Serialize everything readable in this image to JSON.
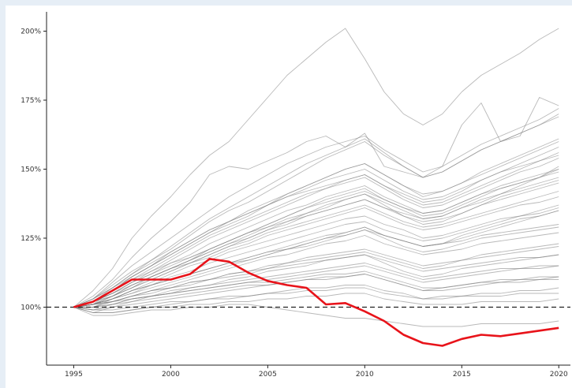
{
  "chart_data": {
    "type": "line",
    "title": "",
    "xlabel": "",
    "ylabel": "",
    "x_ticks": [
      "1995",
      "2000",
      "2005",
      "2010",
      "2015",
      "2020"
    ],
    "y_ticks": [
      "100%",
      "125%",
      "150%",
      "175%",
      "200%"
    ],
    "xlim": [
      1993.6,
      2020.6
    ],
    "ylim": [
      79,
      207
    ],
    "grid": false,
    "legend": "none",
    "baseline": {
      "y": 100,
      "style": "dashed",
      "color": "#222222"
    },
    "background_color": "#808080",
    "highlight_color": "#e8131a",
    "x": [
      1995,
      1996,
      1997,
      1998,
      1999,
      2000,
      2001,
      2002,
      2003,
      2004,
      2005,
      2006,
      2007,
      2008,
      2009,
      2010,
      2011,
      2012,
      2013,
      2014,
      2015,
      2016,
      2017,
      2018,
      2019,
      2020
    ],
    "highlight_series": {
      "values": [
        100,
        102,
        106,
        110,
        110,
        110,
        112,
        117.5,
        116.5,
        112.5,
        109.5,
        108,
        107,
        101,
        101.5,
        98.5,
        95,
        90,
        87,
        86,
        88.5,
        90,
        89.5,
        90.5,
        91.5,
        92.5
      ]
    },
    "background_series": [
      {
        "values": [
          100,
          106,
          114,
          125,
          133,
          140,
          148,
          155,
          160,
          168,
          176,
          184,
          190,
          196,
          201,
          190,
          178,
          170,
          166,
          170,
          178,
          184,
          188,
          192,
          197,
          201
        ]
      },
      {
        "values": [
          100,
          104,
          110,
          118,
          125,
          131,
          138,
          148,
          151,
          150,
          153,
          156,
          160,
          162,
          158,
          163,
          151,
          149,
          147,
          151,
          166,
          174,
          160,
          162,
          176,
          173
        ]
      },
      {
        "values": [
          100,
          101,
          106,
          110,
          113,
          116,
          118,
          121,
          124,
          127,
          129,
          131,
          133,
          135,
          137,
          139,
          136,
          134,
          132,
          133,
          136,
          139,
          141,
          144,
          147,
          151
        ]
      },
      {
        "values": [
          100,
          101,
          103,
          106,
          108,
          110,
          112,
          114,
          116,
          117,
          119,
          121,
          122,
          124,
          126,
          128,
          126,
          124,
          122,
          123,
          126,
          128,
          130,
          132,
          133,
          135
        ]
      },
      {
        "values": [
          100,
          102,
          105,
          109,
          112,
          115,
          118,
          121,
          124,
          127,
          130,
          133,
          136,
          138,
          140,
          142,
          139,
          136,
          134,
          135,
          138,
          141,
          143,
          145,
          147,
          149
        ]
      },
      {
        "values": [
          100,
          103,
          107,
          112,
          116,
          120,
          124,
          128,
          131,
          134,
          137,
          140,
          142,
          144,
          146,
          148,
          144,
          141,
          138,
          139,
          142,
          146,
          149,
          152,
          155,
          158
        ]
      },
      {
        "values": [
          100,
          100,
          102,
          104,
          106,
          107,
          109,
          110,
          112,
          113,
          114,
          116,
          117,
          118,
          119,
          120,
          118,
          116,
          114,
          115,
          117,
          119,
          120,
          121,
          122,
          123
        ]
      },
      {
        "values": [
          100,
          99,
          101,
          103,
          104,
          105,
          106,
          107,
          108,
          109,
          110,
          111,
          112,
          113,
          114,
          115,
          113,
          111,
          109,
          110,
          111,
          112,
          113,
          114,
          114,
          115
        ]
      },
      {
        "values": [
          100,
          102,
          106,
          111,
          115,
          119,
          123,
          127,
          130,
          133,
          137,
          141,
          144,
          147,
          150,
          152,
          148,
          144,
          141,
          142,
          145,
          148,
          151,
          154,
          157,
          160
        ]
      },
      {
        "values": [
          100,
          101,
          104,
          108,
          111,
          114,
          116,
          119,
          122,
          125,
          128,
          131,
          134,
          136,
          139,
          141,
          137,
          133,
          130,
          131,
          134,
          137,
          140,
          142,
          144,
          146
        ]
      },
      {
        "values": [
          100,
          103,
          108,
          113,
          117,
          121,
          126,
          131,
          135,
          138,
          142,
          146,
          150,
          154,
          157,
          160,
          155,
          151,
          147,
          149,
          153,
          157,
          160,
          163,
          166,
          170
        ]
      },
      {
        "values": [
          100,
          100,
          103,
          106,
          108,
          110,
          112,
          114,
          116,
          118,
          120,
          121,
          123,
          125,
          126,
          128,
          125,
          122,
          120,
          121,
          123,
          125,
          126,
          127,
          128,
          129
        ]
      },
      {
        "values": [
          100,
          101,
          103,
          105,
          107,
          109,
          111,
          113,
          115,
          117,
          119,
          121,
          123,
          125,
          127,
          129,
          126,
          124,
          122,
          123,
          125,
          127,
          129,
          131,
          133,
          135
        ]
      },
      {
        "values": [
          100,
          98,
          100,
          102,
          104,
          105,
          107,
          108,
          110,
          111,
          113,
          114,
          115,
          117,
          118,
          119,
          116,
          113,
          111,
          112,
          114,
          115,
          116,
          117,
          118,
          119
        ]
      },
      {
        "values": [
          100,
          102,
          105,
          109,
          113,
          117,
          121,
          125,
          128,
          131,
          134,
          137,
          140,
          143,
          145,
          147,
          143,
          139,
          136,
          137,
          140,
          143,
          146,
          149,
          151,
          154
        ]
      },
      {
        "values": [
          100,
          101,
          104,
          107,
          110,
          113,
          116,
          119,
          122,
          124,
          127,
          129,
          131,
          133,
          135,
          137,
          134,
          131,
          129,
          130,
          132,
          134,
          136,
          138,
          140,
          142
        ]
      },
      {
        "values": [
          100,
          100,
          101,
          103,
          104,
          105,
          106,
          107,
          108,
          109,
          109,
          110,
          111,
          112,
          112,
          113,
          111,
          109,
          107,
          107,
          108,
          109,
          110,
          110,
          111,
          111
        ]
      },
      {
        "values": [
          100,
          103,
          109,
          115,
          120,
          125,
          130,
          135,
          140,
          144,
          148,
          152,
          155,
          158,
          160,
          162,
          157,
          153,
          149,
          151,
          155,
          159,
          162,
          165,
          168,
          172
        ]
      },
      {
        "values": [
          100,
          101,
          103,
          106,
          109,
          112,
          115,
          117,
          120,
          122,
          124,
          126,
          128,
          130,
          132,
          133,
          130,
          128,
          125,
          126,
          128,
          130,
          132,
          133,
          134,
          136
        ]
      },
      {
        "values": [
          100,
          102,
          104,
          107,
          110,
          113,
          116,
          118,
          121,
          123,
          126,
          128,
          130,
          132,
          134,
          136,
          133,
          130,
          128,
          129,
          131,
          133,
          135,
          137,
          138,
          140
        ]
      },
      {
        "values": [
          100,
          101,
          102,
          104,
          106,
          108,
          110,
          112,
          114,
          116,
          118,
          119,
          121,
          123,
          124,
          126,
          123,
          121,
          119,
          120,
          121,
          123,
          124,
          125,
          126,
          127
        ]
      },
      {
        "values": [
          100,
          99,
          100,
          101,
          102,
          103,
          104,
          105,
          106,
          107,
          108,
          109,
          110,
          111,
          111,
          112,
          110,
          108,
          106,
          107,
          108,
          109,
          109,
          110,
          110,
          111
        ]
      },
      {
        "values": [
          100,
          102,
          106,
          110,
          114,
          118,
          122,
          126,
          129,
          132,
          135,
          138,
          141,
          143,
          146,
          148,
          144,
          140,
          137,
          138,
          141,
          144,
          147,
          150,
          153,
          156
        ]
      },
      {
        "values": [
          100,
          101,
          103,
          106,
          108,
          111,
          113,
          116,
          118,
          120,
          122,
          124,
          126,
          128,
          130,
          131,
          128,
          126,
          124,
          125,
          127,
          129,
          131,
          133,
          135,
          137
        ]
      },
      {
        "values": [
          100,
          102,
          105,
          108,
          111,
          114,
          117,
          120,
          123,
          125,
          128,
          130,
          133,
          135,
          137,
          139,
          136,
          133,
          131,
          132,
          134,
          137,
          139,
          141,
          143,
          145
        ]
      },
      {
        "values": [
          100,
          100,
          102,
          104,
          105,
          107,
          108,
          110,
          111,
          112,
          114,
          115,
          116,
          117,
          118,
          119,
          117,
          115,
          113,
          114,
          115,
          116,
          117,
          118,
          118,
          119
        ]
      },
      {
        "values": [
          100,
          101,
          104,
          107,
          111,
          114,
          117,
          120,
          123,
          126,
          129,
          132,
          134,
          137,
          139,
          141,
          138,
          135,
          132,
          133,
          136,
          138,
          141,
          143,
          145,
          147
        ]
      },
      {
        "values": [
          100,
          102,
          106,
          111,
          115,
          120,
          124,
          128,
          131,
          135,
          138,
          141,
          144,
          147,
          150,
          152,
          148,
          144,
          140,
          142,
          145,
          149,
          152,
          155,
          158,
          161
        ]
      },
      {
        "values": [
          100,
          101,
          102,
          104,
          106,
          107,
          109,
          110,
          112,
          113,
          115,
          116,
          118,
          119,
          120,
          121,
          119,
          117,
          115,
          116,
          117,
          118,
          119,
          120,
          121,
          122
        ]
      },
      {
        "values": [
          100,
          103,
          107,
          111,
          115,
          119,
          123,
          127,
          131,
          134,
          137,
          140,
          143,
          146,
          148,
          150,
          146,
          142,
          139,
          140,
          143,
          146,
          149,
          151,
          153,
          155
        ]
      },
      {
        "values": [
          100,
          98,
          98,
          99,
          100,
          101,
          102,
          103,
          103,
          104,
          105,
          106,
          107,
          107,
          108,
          108,
          106,
          105,
          103,
          104,
          104,
          105,
          105,
          106,
          106,
          107
        ]
      },
      {
        "values": [
          100,
          102,
          104,
          108,
          111,
          114,
          117,
          121,
          124,
          127,
          130,
          133,
          136,
          139,
          141,
          143,
          139,
          136,
          133,
          134,
          137,
          140,
          143,
          145,
          147,
          150
        ]
      },
      {
        "values": [
          100,
          101,
          103,
          105,
          108,
          110,
          112,
          114,
          116,
          118,
          120,
          122,
          124,
          126,
          127,
          129,
          126,
          124,
          122,
          123,
          124,
          126,
          127,
          128,
          129,
          130
        ]
      },
      {
        "values": [
          100,
          102,
          107,
          112,
          117,
          122,
          127,
          132,
          136,
          140,
          144,
          148,
          152,
          155,
          158,
          161,
          156,
          151,
          147,
          149,
          153,
          157,
          160,
          163,
          166,
          169
        ]
      },
      {
        "values": [
          100,
          101,
          102,
          103,
          104,
          106,
          107,
          108,
          109,
          110,
          111,
          112,
          113,
          114,
          115,
          116,
          114,
          112,
          110,
          111,
          112,
          113,
          114,
          114,
          115,
          115
        ]
      },
      {
        "values": [
          100,
          102,
          105,
          109,
          112,
          116,
          119,
          123,
          126,
          129,
          132,
          135,
          137,
          140,
          142,
          144,
          140,
          137,
          134,
          135,
          138,
          141,
          144,
          146,
          148,
          150
        ]
      },
      {
        "values": [
          100,
          100,
          101,
          102,
          103,
          104,
          105,
          106,
          107,
          108,
          108,
          109,
          110,
          110,
          111,
          112,
          110,
          108,
          106,
          106,
          107,
          108,
          109,
          109,
          110,
          110
        ]
      },
      {
        "values": [
          100,
          99,
          99,
          100,
          101,
          102,
          102,
          103,
          104,
          104,
          105,
          105,
          106,
          106,
          107,
          107,
          105,
          104,
          103,
          103,
          104,
          104,
          104,
          105,
          105,
          105
        ]
      },
      {
        "values": [
          100,
          98,
          98,
          99,
          100,
          100,
          101,
          101,
          102,
          102,
          103,
          103,
          104,
          104,
          105,
          105,
          103,
          102,
          101,
          101,
          101,
          102,
          102,
          102,
          102,
          103
        ]
      },
      {
        "values": [
          100,
          97,
          97,
          98,
          99,
          99,
          100,
          100,
          101,
          101,
          100,
          99,
          98,
          97,
          96,
          96,
          95,
          94,
          93,
          93,
          93,
          94,
          94,
          94,
          94,
          95
        ]
      }
    ]
  }
}
